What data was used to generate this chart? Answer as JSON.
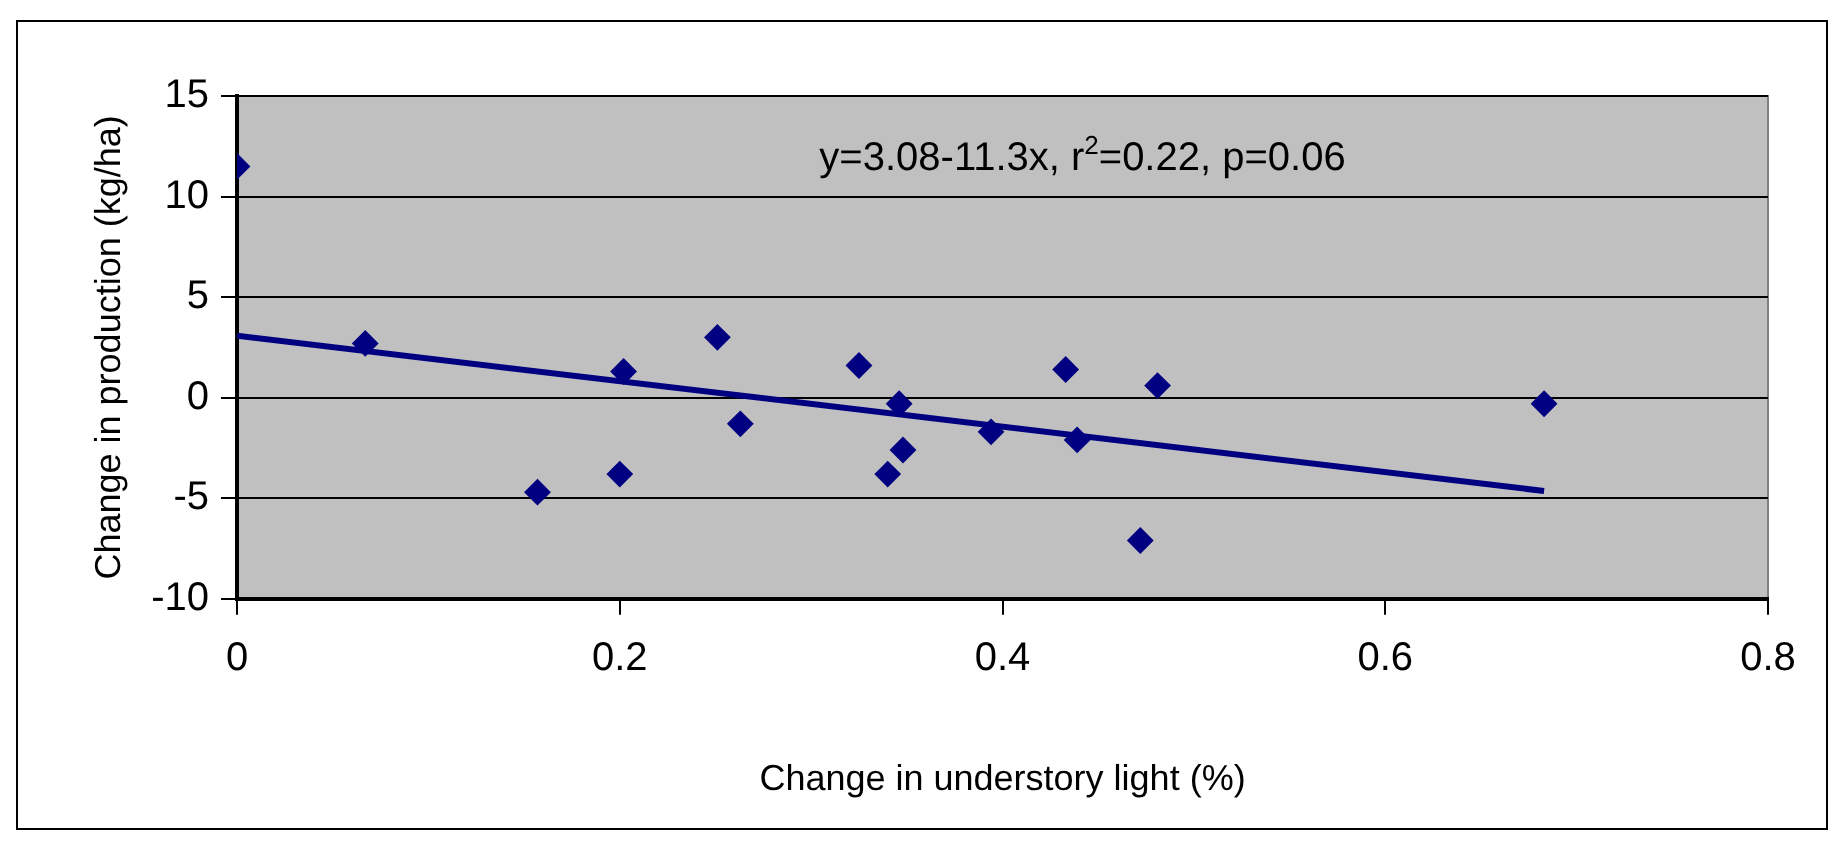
{
  "chart_data": {
    "type": "scatter",
    "xlabel": "Change in understory light (%)",
    "ylabel": "Change in production (kg/ha)",
    "xlim": [
      0,
      0.8
    ],
    "xticks": [
      0,
      0.2,
      0.4,
      0.6,
      0.8
    ],
    "ylim": [
      -10,
      15
    ],
    "yticks": [
      -10,
      -5,
      0,
      5,
      10,
      15
    ],
    "grid": "y",
    "legend": false,
    "marker": "diamond",
    "annotations": [
      "y=3.08-11.3x, r$^{2}$=0.22, p=0.06"
    ],
    "series": [
      {
        "color": "#000080",
        "x": [
          0.0,
          0.067,
          0.157,
          0.2,
          0.202,
          0.251,
          0.263,
          0.325,
          0.34,
          0.346,
          0.348,
          0.394,
          0.433,
          0.439,
          0.472,
          0.481,
          0.683
        ],
        "values": [
          11.5,
          2.7,
          -4.7,
          -3.8,
          1.3,
          3.0,
          -1.3,
          1.6,
          -3.8,
          -0.3,
          -2.6,
          -1.7,
          1.4,
          -2.1,
          -7.1,
          0.6,
          -0.3
        ]
      },
      {
        "type": "line",
        "marker": "none",
        "color": "#000080",
        "x": [
          0,
          0.683
        ],
        "values": [
          3.08,
          -4.64
        ]
      }
    ]
  }
}
